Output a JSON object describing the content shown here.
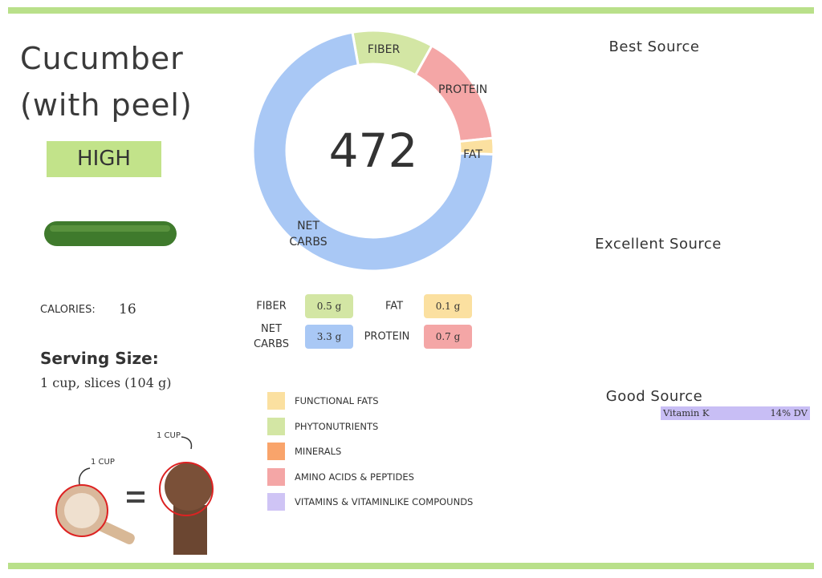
{
  "food": {
    "title": "Cucumber (with peel)",
    "rating": "HIGH",
    "calories_label": "CALORIES:",
    "calories": "16",
    "serving_heading": "Serving Size:",
    "serving": "1 cup, slices (104 g)",
    "cup_label": "1 CUP",
    "fist_label": "1 CUP"
  },
  "donut": {
    "center_label": "472",
    "categories": [
      "FIBER",
      "PROTEIN",
      "FAT",
      "NET CARBS"
    ],
    "values": [
      0.5,
      0.7,
      0.1,
      3.3
    ],
    "value_labels": [
      "0.5 g",
      "0.7 g",
      "0.1 g",
      "3.3 g"
    ],
    "colors": [
      "#d3e6a4",
      "#f4a6a6",
      "#fbe0a0",
      "#a9c8f5"
    ]
  },
  "legend": [
    {
      "label": "FUNCTIONAL FATS",
      "color": "#fbe0a0"
    },
    {
      "label": "PHYTONUTRIENTS",
      "color": "#d3e6a4"
    },
    {
      "label": "MINERALS",
      "color": "#f9a46b"
    },
    {
      "label": "AMINO ACIDS & PEPTIDES",
      "color": "#f4a6a6"
    },
    {
      "label": "VITAMINS & VITAMINLIKE COMPOUNDS",
      "color": "#cfc4f5"
    }
  ],
  "sources": {
    "best": "Best Source",
    "excellent": "Excellent Source",
    "good": "Good Source",
    "good_items": [
      {
        "name": "Vitamin K",
        "dv": "14% DV"
      }
    ]
  }
}
